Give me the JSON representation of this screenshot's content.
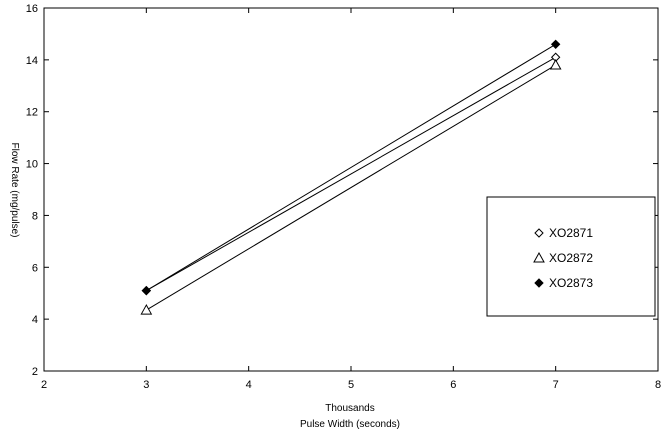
{
  "chart_data": {
    "type": "line",
    "x": [
      3,
      7
    ],
    "series": [
      {
        "name": "XO2871",
        "values": [
          5.1,
          14.1
        ],
        "marker": "open-diamond"
      },
      {
        "name": "XO2872",
        "values": [
          4.35,
          13.8
        ],
        "marker": "open-triangle"
      },
      {
        "name": "XO2873",
        "values": [
          5.1,
          14.6
        ],
        "marker": "filled-diamond"
      }
    ],
    "xlabel_line1": "Thousands",
    "xlabel_line2": "Pulse Width (seconds)",
    "ylabel": "Flow Rate (mg/pulse)",
    "xlim": [
      2,
      8
    ],
    "ylim": [
      2,
      16
    ],
    "x_ticks": [
      2,
      3,
      4,
      5,
      6,
      7,
      8
    ],
    "y_ticks": [
      2,
      4,
      6,
      8,
      10,
      12,
      14,
      16
    ],
    "grid": false,
    "legend_position": "right"
  },
  "colors": {
    "line": "#000000",
    "background": "#ffffff"
  }
}
